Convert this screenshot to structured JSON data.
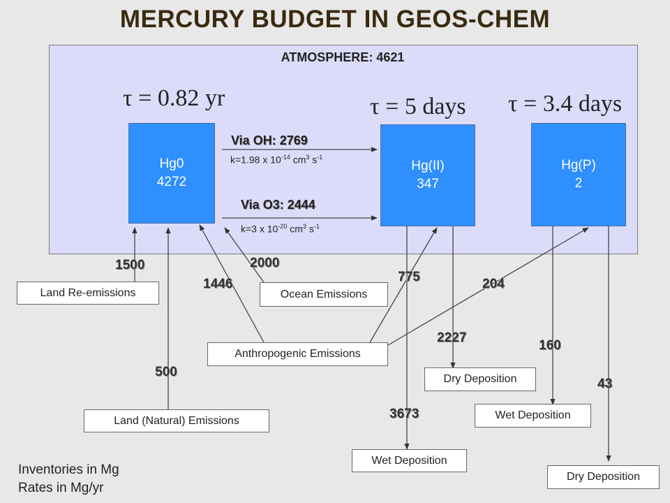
{
  "title": "MERCURY BUDGET IN GEOS-CHEM",
  "atmosphere_label": "ATMOSPHERE: 4621",
  "lifetimes": {
    "hg0": "τ = 0.82 yr",
    "hg2": "τ = 5 days",
    "hgp": "τ = 3.4 days"
  },
  "species": {
    "hg0": {
      "name": "Hg0",
      "value": "4272"
    },
    "hg2": {
      "name": "Hg(II)",
      "value": "347"
    },
    "hgp": {
      "name": "Hg(P)",
      "value": "2"
    }
  },
  "oxidation": {
    "oh_label": "Via OH: 2769",
    "oh_rate_prefix": "k=1.98 x 10",
    "oh_rate_exp": "-14",
    "oh_rate_units": "cm",
    "o3_label": "Via O3: 2444",
    "o3_rate_prefix": "k=3 x 10",
    "o3_rate_exp": "-20",
    "o3_rate_units": "cm",
    "units_exp1": "3",
    "units_s": "s",
    "units_exp2": "-1"
  },
  "sources": {
    "land_reemissions": "Land Re-emissions",
    "ocean_emissions": "Ocean Emissions",
    "anthropogenic": "Anthropogenic Emissions",
    "land_natural": "Land (Natural) Emissions"
  },
  "sinks": {
    "hg2_dry": "Dry Deposition",
    "hg2_wet": "Wet Deposition",
    "hgp_wet": "Wet Deposition",
    "hgp_dry": "Dry Deposition"
  },
  "fluxes": {
    "land_reemissions": "1500",
    "ocean": "2000",
    "anthro_hg0": "1446",
    "anthro_hg2": "775",
    "anthro_hgp": "204",
    "land_natural": "500",
    "hg2_dry": "2227",
    "hg2_wet": "3673",
    "hgp_wet": "160",
    "hgp_dry": "43"
  },
  "footer": {
    "line1": "Inventories in Mg",
    "line2": "Rates in Mg/yr"
  }
}
